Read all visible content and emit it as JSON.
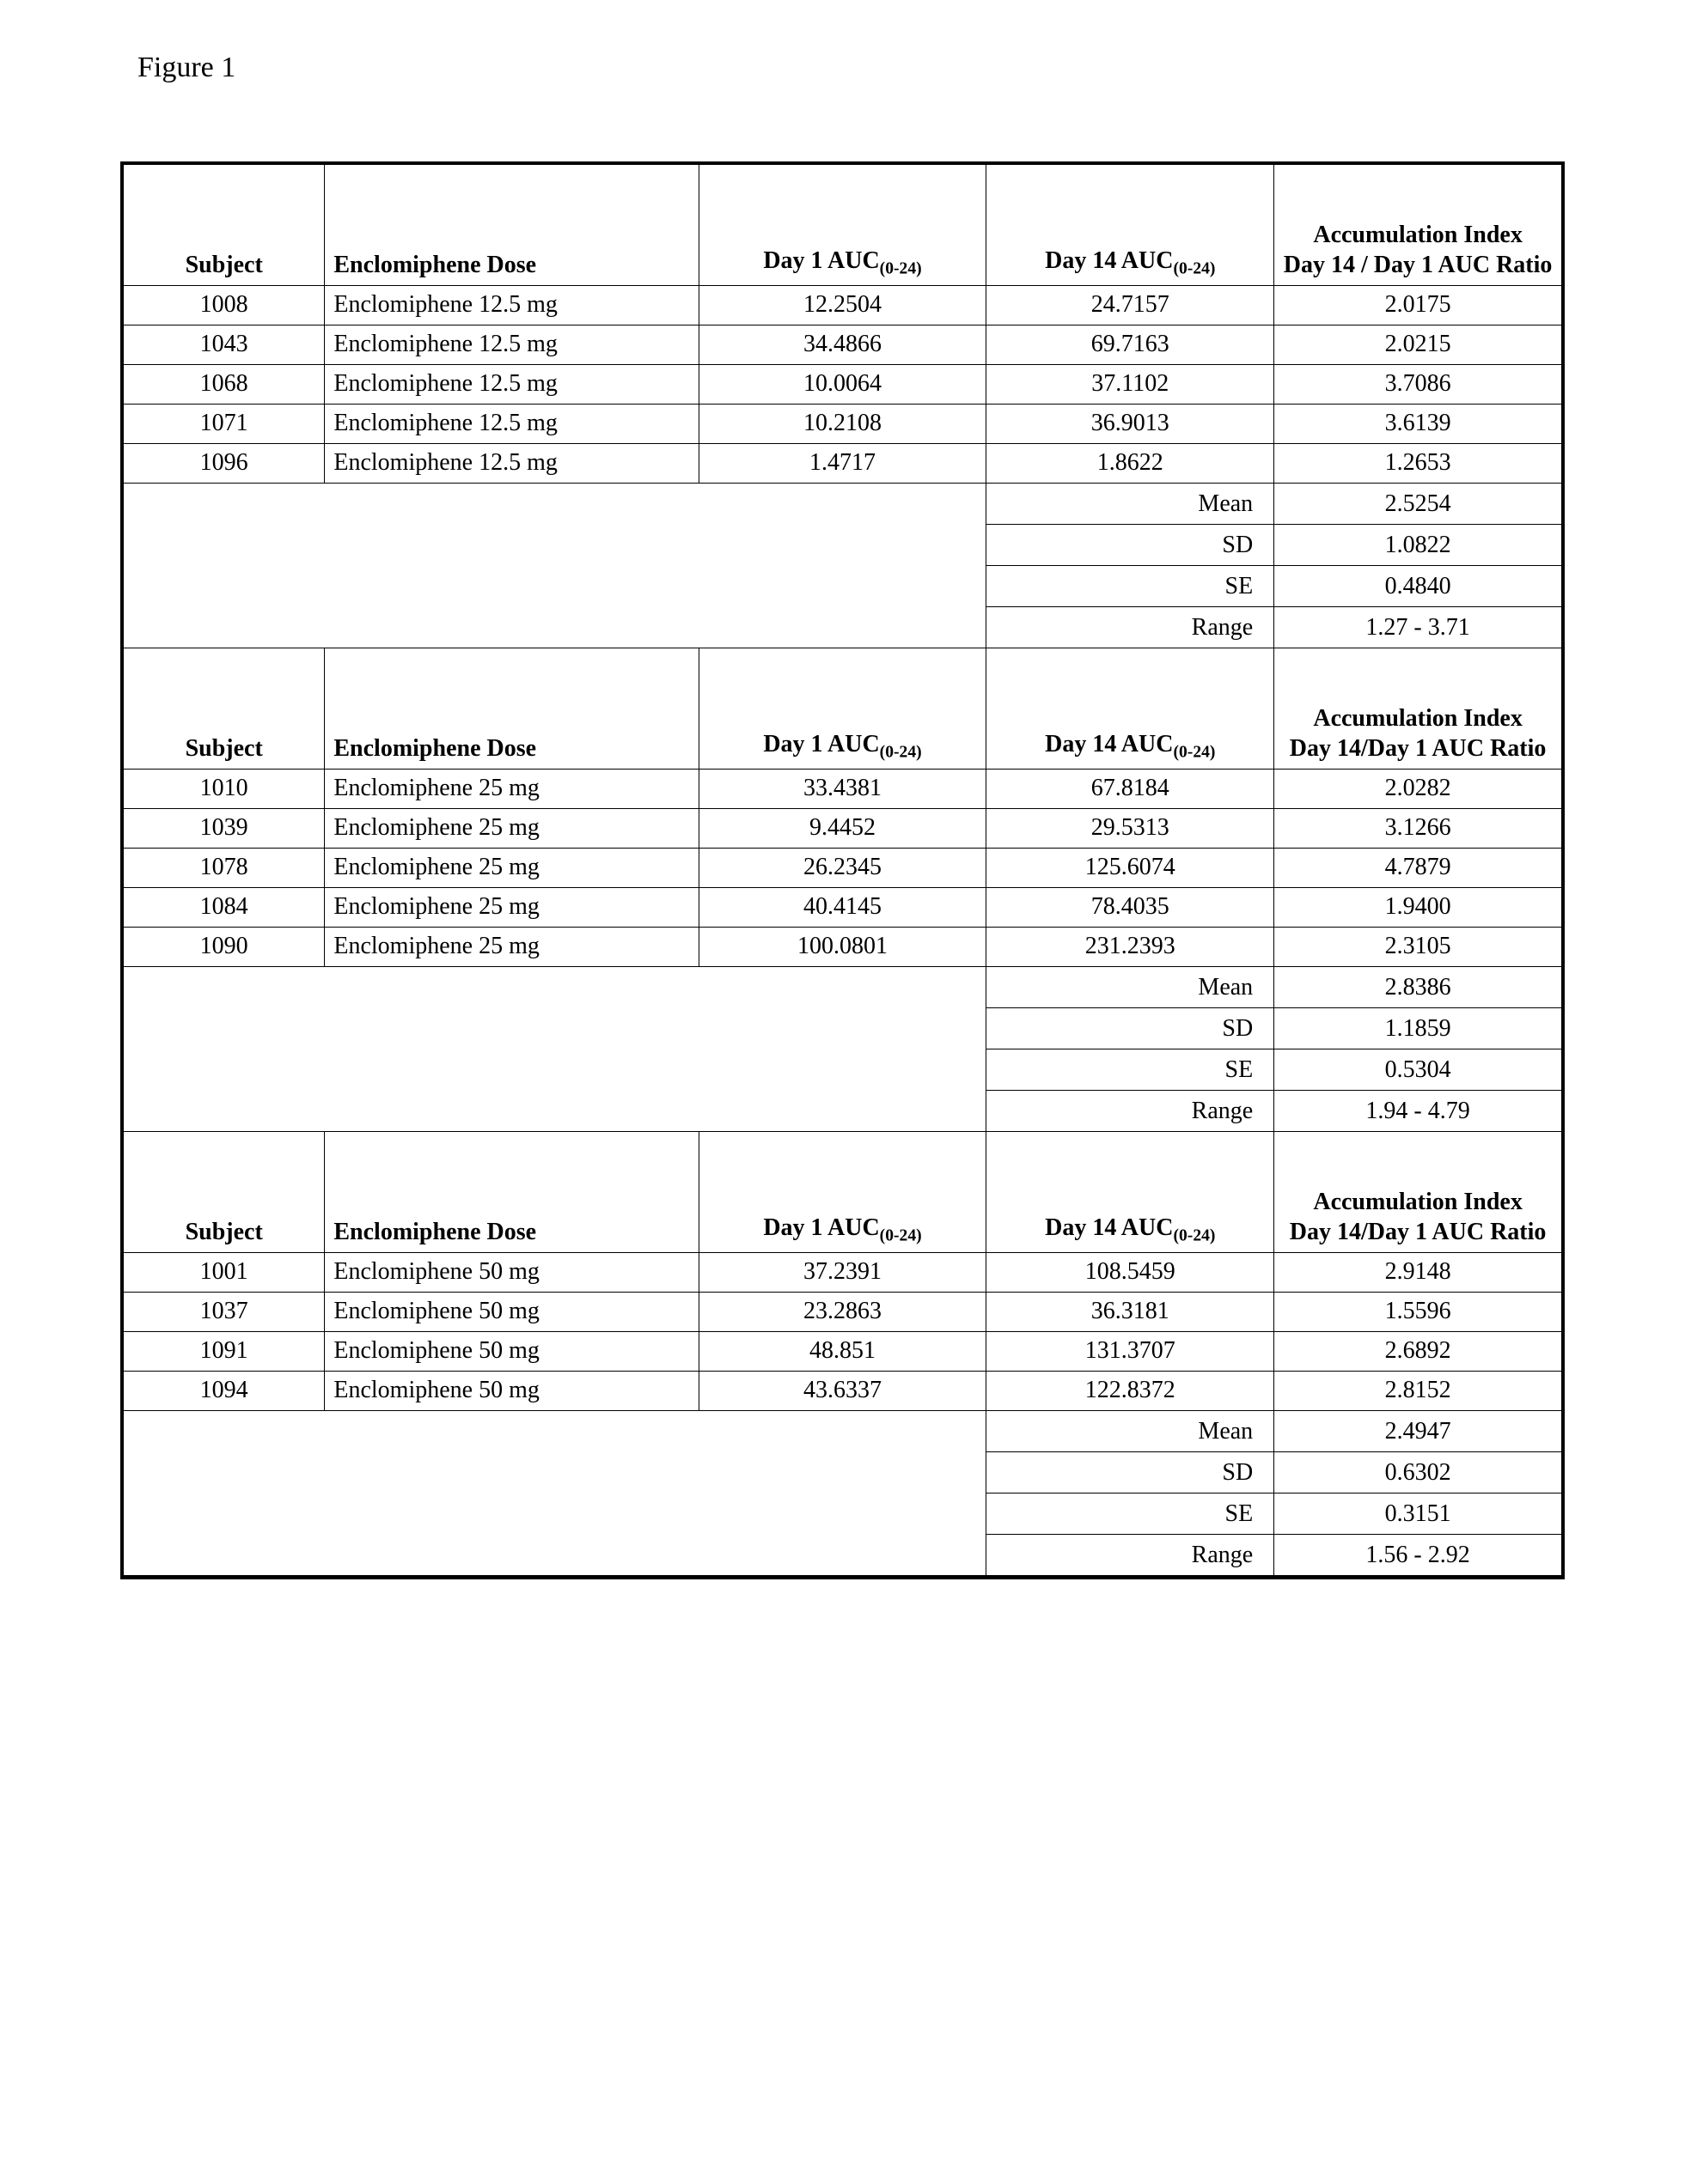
{
  "figureLabel": "Figure 1",
  "columns": {
    "subject": "Subject",
    "dose": "Enclomiphene Dose",
    "day1_pre": "Day 1 AUC",
    "day1_sub": "(0-24)",
    "day14_pre": "Day 14 AUC",
    "day14_sub": "(0-24)",
    "accum_line1": "Accumulation Index",
    "accum_line2a": "Day 14 / Day 1 AUC Ratio",
    "accum_line2b": "Day 14/Day 1 AUC Ratio"
  },
  "statLabels": {
    "mean": "Mean",
    "sd": "SD",
    "se": "SE",
    "range": "Range"
  },
  "sections": [
    {
      "accum_line2_key": "accum_line2a",
      "rows": [
        {
          "subject": "1008",
          "dose": "Enclomiphene 12.5 mg",
          "day1": "12.2504",
          "day14": "24.7157",
          "ratio": "2.0175"
        },
        {
          "subject": "1043",
          "dose": "Enclomiphene 12.5 mg",
          "day1": "34.4866",
          "day14": "69.7163",
          "ratio": "2.0215"
        },
        {
          "subject": "1068",
          "dose": "Enclomiphene 12.5 mg",
          "day1": "10.0064",
          "day14": "37.1102",
          "ratio": "3.7086"
        },
        {
          "subject": "1071",
          "dose": "Enclomiphene 12.5 mg",
          "day1": "10.2108",
          "day14": "36.9013",
          "ratio": "3.6139"
        },
        {
          "subject": "1096",
          "dose": "Enclomiphene 12.5 mg",
          "day1": "1.4717",
          "day14": "1.8622",
          "ratio": "1.2653"
        }
      ],
      "stats": {
        "mean": "2.5254",
        "sd": "1.0822",
        "se": "0.4840",
        "range": "1.27 - 3.71"
      }
    },
    {
      "accum_line2_key": "accum_line2b",
      "rows": [
        {
          "subject": "1010",
          "dose": "Enclomiphene 25 mg",
          "day1": "33.4381",
          "day14": "67.8184",
          "ratio": "2.0282"
        },
        {
          "subject": "1039",
          "dose": "Enclomiphene 25 mg",
          "day1": "9.4452",
          "day14": "29.5313",
          "ratio": "3.1266"
        },
        {
          "subject": "1078",
          "dose": "Enclomiphene 25 mg",
          "day1": "26.2345",
          "day14": "125.6074",
          "ratio": "4.7879"
        },
        {
          "subject": "1084",
          "dose": "Enclomiphene 25 mg",
          "day1": "40.4145",
          "day14": "78.4035",
          "ratio": "1.9400"
        },
        {
          "subject": "1090",
          "dose": "Enclomiphene 25 mg",
          "day1": "100.0801",
          "day14": "231.2393",
          "ratio": "2.3105"
        }
      ],
      "stats": {
        "mean": "2.8386",
        "sd": "1.1859",
        "se": "0.5304",
        "range": "1.94 - 4.79"
      }
    },
    {
      "accum_line2_key": "accum_line2b",
      "rows": [
        {
          "subject": "1001",
          "dose": "Enclomiphene 50 mg",
          "day1": "37.2391",
          "day14": "108.5459",
          "ratio": "2.9148"
        },
        {
          "subject": "1037",
          "dose": "Enclomiphene 50 mg",
          "day1": "23.2863",
          "day14": "36.3181",
          "ratio": "1.5596"
        },
        {
          "subject": "1091",
          "dose": "Enclomiphene 50 mg",
          "day1": "48.851",
          "day14": "131.3707",
          "ratio": "2.6892"
        },
        {
          "subject": "1094",
          "dose": "Enclomiphene 50 mg",
          "day1": "43.6337",
          "day14": "122.8372",
          "ratio": "2.8152"
        }
      ],
      "stats": {
        "mean": "2.4947",
        "sd": "0.6302",
        "se": "0.3151",
        "range": "1.56 - 2.92"
      }
    }
  ]
}
